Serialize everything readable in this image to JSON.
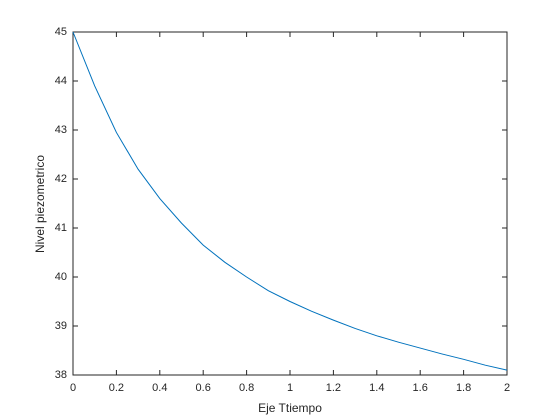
{
  "chart_data": {
    "type": "line",
    "xlabel": "Eje Ttiempo",
    "ylabel": "Nivel piezometrico",
    "x": [
      0,
      0.1,
      0.2,
      0.3,
      0.4,
      0.5,
      0.6,
      0.7,
      0.8,
      0.9,
      1.0,
      1.1,
      1.2,
      1.3,
      1.4,
      1.5,
      1.6,
      1.7,
      1.8,
      1.9,
      2.0
    ],
    "series": [
      {
        "color": "#0072bd",
        "values": [
          45,
          43.9,
          42.95,
          42.2,
          41.6,
          41.1,
          40.65,
          40.3,
          40.0,
          39.72,
          39.5,
          39.3,
          39.12,
          38.95,
          38.8,
          38.67,
          38.55,
          38.43,
          38.32,
          38.2,
          38.1
        ]
      }
    ],
    "xlim": [
      0,
      2
    ],
    "ylim": [
      38,
      45
    ],
    "xticks": [
      0,
      0.2,
      0.4,
      0.6,
      0.8,
      1,
      1.2,
      1.4,
      1.6,
      1.8,
      2
    ],
    "yticks": [
      38,
      39,
      40,
      41,
      42,
      43,
      44,
      45
    ],
    "grid": false
  }
}
